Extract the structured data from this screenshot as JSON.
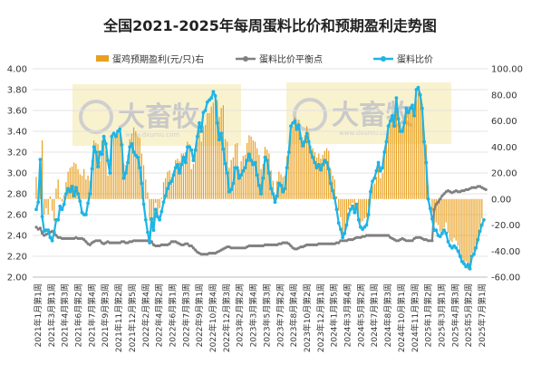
{
  "chart_data": {
    "type": "bar+line",
    "title": "全国2021-2025年每周蛋料比价和预期盈利走势图",
    "legend": {
      "placement": "top",
      "items": [
        {
          "name": "蛋鸡预期盈利(元/只)右",
          "kind": "bar",
          "color": "#E8A020"
        },
        {
          "name": "蛋料比价平衡点",
          "kind": "line-dot",
          "color": "#808080"
        },
        {
          "name": "蛋料比价",
          "kind": "line-dot",
          "color": "#1EB4E6"
        }
      ]
    },
    "y_left": {
      "min": 2.0,
      "max": 4.0,
      "ticks": [
        "2.00",
        "2.20",
        "2.40",
        "2.60",
        "2.80",
        "3.00",
        "3.20",
        "3.40",
        "3.60",
        "3.80",
        "4.00"
      ]
    },
    "y_right": {
      "min": -60,
      "max": 100,
      "ticks": [
        "-60.00",
        "-40.00",
        "-20.00",
        "0.00",
        "20.00",
        "40.00",
        "60.00",
        "80.00",
        "100.00"
      ]
    },
    "grid": true,
    "x_labels": [
      "2021年1月第1周",
      "2021年3月第1周",
      "2021年4月第3周",
      "2021年6月第2周",
      "2021年7月第4周",
      "2021年9月第3周",
      "2021年11月第2周",
      "2021年12月第5周",
      "2022年2月第4周",
      "2022年4月第2周",
      "2022年6月第1周",
      "2022年7月第3周",
      "2022年9月第1周",
      "2022年10月第4周",
      "2022年12月第3周",
      "2023年2月第2周",
      "2023年3月第4周",
      "2023年5月第3周",
      "2023年7月第2周",
      "2023年8月第4周",
      "2023年10月第2周",
      "2023年12月第1周",
      "2024年1月第5周",
      "2024年3月第4周",
      "2024年5月第2周",
      "2024年7月第1周",
      "2024年8月第3周",
      "2024年10月第1周",
      "2024年11月第3周",
      "2025年1月第2周",
      "2025年3月第1周",
      "2025年4月第3周",
      "2025年5月第2周",
      "2025年7月第1周"
    ],
    "watermark": {
      "brand": "大畜牧",
      "site": "www.dxumu.com"
    },
    "series": [
      {
        "name": "蛋鸡预期盈利(元/只)右",
        "axis": "right",
        "values": [
          17,
          7,
          31,
          45,
          -12,
          -7,
          -12,
          2,
          -9,
          -17,
          8,
          15,
          1,
          -2,
          3,
          13,
          21,
          24,
          25,
          28,
          27,
          23,
          19,
          18,
          23,
          15,
          18,
          14,
          30,
          45,
          43,
          42,
          29,
          45,
          42,
          37,
          18,
          28,
          50,
          47,
          48,
          50,
          51,
          43,
          27,
          26,
          34,
          46,
          50,
          55,
          52,
          48,
          47,
          35,
          26,
          15,
          5,
          -17,
          -23,
          -21,
          -3,
          -12,
          -7,
          1,
          13,
          16,
          21,
          22,
          17,
          22,
          30,
          31,
          29,
          35,
          35,
          36,
          44,
          42,
          23,
          27,
          35,
          44,
          53,
          44,
          56,
          57,
          66,
          66,
          71,
          74,
          74,
          76,
          63,
          70,
          72,
          46,
          44,
          24,
          30,
          32,
          42,
          43,
          23,
          29,
          33,
          34,
          43,
          49,
          48,
          45,
          44,
          39,
          34,
          23,
          27,
          40,
          38,
          35,
          22,
          14,
          3,
          14,
          21,
          19,
          17,
          18,
          33,
          39,
          52,
          56,
          63,
          58,
          61,
          50,
          45,
          49,
          56,
          51,
          41,
          39,
          36,
          32,
          35,
          31,
          34,
          37,
          39,
          37,
          23,
          18,
          15,
          2,
          -9,
          -14,
          -30,
          -27,
          -18,
          -8,
          -5,
          -3,
          -8,
          0,
          -12,
          -18,
          -17,
          -15,
          -14,
          -6,
          5,
          10,
          12,
          17,
          25,
          16,
          20,
          34,
          42,
          53,
          58,
          62,
          57,
          75,
          64,
          57,
          55,
          60,
          68,
          66,
          70,
          71,
          65,
          76,
          82,
          78,
          73,
          52,
          42,
          10,
          0,
          -10,
          -20,
          -18,
          -20,
          -25,
          -26,
          -22,
          -18,
          -26,
          -32,
          -33,
          -30,
          -32,
          -36,
          -43,
          -46,
          -49,
          -48,
          -54,
          -51,
          -42,
          -40,
          -35,
          -30,
          -22,
          -15
        ]
      },
      {
        "name": "蛋料比价",
        "axis": "left",
        "values": [
          2.65,
          2.72,
          3.13,
          2.58,
          2.44,
          2.45,
          2.45,
          2.38,
          2.35,
          2.43,
          2.55,
          2.55,
          2.68,
          2.65,
          2.7,
          2.8,
          2.85,
          2.82,
          2.87,
          2.78,
          2.86,
          2.8,
          2.73,
          2.62,
          2.6,
          2.6,
          2.71,
          2.8,
          3.04,
          3.25,
          3.2,
          3.06,
          3.2,
          3.18,
          3.35,
          3.28,
          3.12,
          3.0,
          3.35,
          3.38,
          3.35,
          3.4,
          3.42,
          3.27,
          2.95,
          3.0,
          3.1,
          3.25,
          3.28,
          3.2,
          3.17,
          3.15,
          3.05,
          2.9,
          2.7,
          2.55,
          2.43,
          2.33,
          2.56,
          2.45,
          2.65,
          2.58,
          2.55,
          2.63,
          2.72,
          2.78,
          2.85,
          2.9,
          2.92,
          2.98,
          3.05,
          3.08,
          3.0,
          3.08,
          3.15,
          3.1,
          3.25,
          3.25,
          3.22,
          3.12,
          3.22,
          3.35,
          3.48,
          3.4,
          3.58,
          3.6,
          3.68,
          3.7,
          3.72,
          3.78,
          3.74,
          3.48,
          3.32,
          3.38,
          3.23,
          3.09,
          3.0,
          2.82,
          2.84,
          2.9,
          3.05,
          3.05,
          2.95,
          2.98,
          3.02,
          3.05,
          3.12,
          3.18,
          3.12,
          3.08,
          3.1,
          2.98,
          2.88,
          2.8,
          2.95,
          3.15,
          3.12,
          3.0,
          2.85,
          2.8,
          2.72,
          2.78,
          2.9,
          2.88,
          2.82,
          2.85,
          3.05,
          3.2,
          3.45,
          3.48,
          3.5,
          3.42,
          3.46,
          3.33,
          3.26,
          3.3,
          3.38,
          3.3,
          3.2,
          3.15,
          3.1,
          3.05,
          3.08,
          3.03,
          3.08,
          3.12,
          3.1,
          3.04,
          2.9,
          2.83,
          2.76,
          2.65,
          2.52,
          2.46,
          2.38,
          2.42,
          2.5,
          2.6,
          2.65,
          2.68,
          2.62,
          2.7,
          2.55,
          2.48,
          2.46,
          2.48,
          2.5,
          2.6,
          2.82,
          2.92,
          2.95,
          3.02,
          3.1,
          3.02,
          3.05,
          3.2,
          3.3,
          3.45,
          3.5,
          3.55,
          3.45,
          3.72,
          3.52,
          3.4,
          3.4,
          3.48,
          3.62,
          3.58,
          3.62,
          3.65,
          3.55,
          3.8,
          3.82,
          3.75,
          3.62,
          3.3,
          3.1,
          2.75,
          2.66,
          2.56,
          2.45,
          2.45,
          2.4,
          2.39,
          2.42,
          2.45,
          2.42,
          2.34,
          2.3,
          2.28,
          2.3,
          2.28,
          2.25,
          2.2,
          2.15,
          2.13,
          2.1,
          2.12,
          2.08,
          2.2,
          2.22,
          2.28,
          2.36,
          2.44,
          2.5,
          2.55
        ]
      },
      {
        "name": "蛋料比价平衡点",
        "axis": "left",
        "segments_break_at": [
          172
        ],
        "values": [
          2.48,
          2.46,
          2.47,
          2.42,
          2.4,
          2.41,
          2.42,
          2.43,
          2.44,
          2.42,
          2.4,
          2.38,
          2.38,
          2.37,
          2.37,
          2.37,
          2.37,
          2.37,
          2.37,
          2.37,
          2.38,
          2.37,
          2.37,
          2.37,
          2.36,
          2.34,
          2.32,
          2.31,
          2.33,
          2.34,
          2.35,
          2.35,
          2.35,
          2.33,
          2.32,
          2.33,
          2.34,
          2.33,
          2.33,
          2.33,
          2.33,
          2.33,
          2.33,
          2.34,
          2.34,
          2.33,
          2.33,
          2.34,
          2.34,
          2.35,
          2.35,
          2.35,
          2.35,
          2.35,
          2.35,
          2.35,
          2.35,
          2.35,
          2.34,
          2.31,
          2.3,
          2.3,
          2.3,
          2.31,
          2.31,
          2.31,
          2.31,
          2.32,
          2.34,
          2.34,
          2.34,
          2.33,
          2.32,
          2.31,
          2.31,
          2.32,
          2.32,
          2.3,
          2.3,
          2.28,
          2.26,
          2.24,
          2.23,
          2.22,
          2.22,
          2.22,
          2.22,
          2.23,
          2.23,
          2.23,
          2.23,
          2.24,
          2.25,
          2.26,
          2.27,
          2.28,
          2.29,
          2.29,
          2.28,
          2.28,
          2.28,
          2.28,
          2.28,
          2.28,
          2.28,
          2.28,
          2.29,
          2.3,
          2.3,
          2.3,
          2.3,
          2.3,
          2.3,
          2.3,
          2.3,
          2.31,
          2.31,
          2.31,
          2.31,
          2.31,
          2.31,
          2.31,
          2.32,
          2.32,
          2.33,
          2.33,
          2.33,
          2.32,
          2.3,
          2.28,
          2.27,
          2.27,
          2.28,
          2.29,
          2.29,
          2.3,
          2.31,
          2.31,
          2.31,
          2.31,
          2.31,
          2.31,
          2.32,
          2.32,
          2.32,
          2.32,
          2.32,
          2.32,
          2.32,
          2.32,
          2.32,
          2.33,
          2.33,
          2.35,
          2.35,
          2.35,
          2.35,
          2.36,
          2.36,
          2.36,
          2.37,
          2.38,
          2.38,
          2.38,
          2.39,
          2.39,
          2.4,
          2.4,
          2.4,
          2.4,
          2.4,
          2.4,
          2.4,
          2.4,
          2.4,
          2.4,
          2.4,
          2.4,
          2.38,
          2.37,
          2.36,
          2.35,
          2.35,
          2.36,
          2.37,
          2.36,
          2.35,
          2.35,
          2.35,
          2.35,
          2.37,
          2.38,
          2.38,
          2.38,
          2.37,
          2.36,
          2.36,
          2.35,
          2.35,
          2.35,
          2.65,
          2.7,
          2.72,
          2.75,
          2.78,
          2.8,
          2.82,
          2.83,
          2.82,
          2.81,
          2.82,
          2.83,
          2.82,
          2.82,
          2.83,
          2.83,
          2.84,
          2.84,
          2.85,
          2.86,
          2.86,
          2.86,
          2.87,
          2.87,
          2.86,
          2.85,
          2.84
        ]
      }
    ]
  }
}
